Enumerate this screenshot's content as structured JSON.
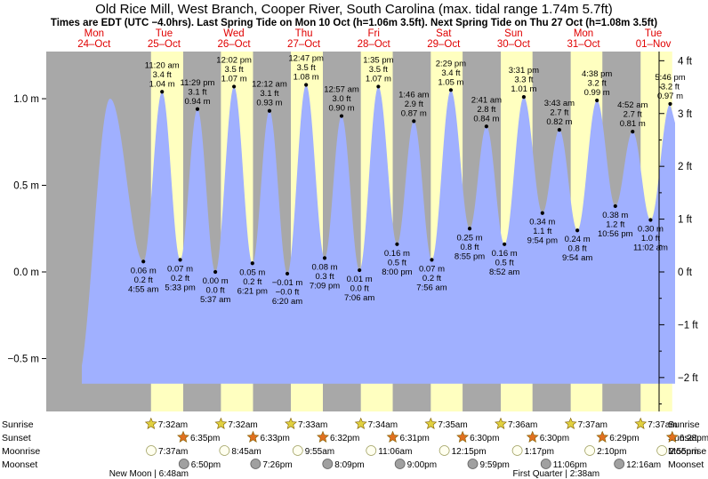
{
  "title": "Old Rice Mill, West Branch, Cooper River, South Carolina (max. tidal range 1.74m 5.7ft)",
  "subtitle": "Times are EDT (UTC −4.0hrs). Last Spring Tide on Mon 10 Oct (h=1.06m 3.5ft). Next Spring Tide on Thu 27 Oct (h=1.08m 3.5ft)",
  "chart_data": {
    "type": "area",
    "left_axis": {
      "unit": "m",
      "range": [
        -0.68,
        1.3
      ],
      "ticks": [
        "1.0 m",
        "0.5 m",
        "0.0 m",
        "−0.5 m"
      ],
      "tick_values": [
        1.0,
        0.5,
        0.0,
        -0.5
      ]
    },
    "right_axis": {
      "unit": "ft",
      "ticks": [
        "4 ft",
        "3 ft",
        "2 ft",
        "1 ft",
        "0 ft",
        "−1 ft",
        "−2 ft"
      ],
      "tick_values": [
        4,
        3,
        2,
        1,
        0,
        -1,
        -2
      ]
    },
    "days": [
      {
        "dow": "Mon",
        "date": "24–Oct"
      },
      {
        "dow": "Tue",
        "date": "25–Oct"
      },
      {
        "dow": "Wed",
        "date": "26–Oct"
      },
      {
        "dow": "Thu",
        "date": "27–Oct"
      },
      {
        "dow": "Fri",
        "date": "28–Oct"
      },
      {
        "dow": "Sat",
        "date": "29–Oct"
      },
      {
        "dow": "Sun",
        "date": "30–Oct"
      },
      {
        "dow": "Mon",
        "date": "31–Oct"
      },
      {
        "dow": "Tue",
        "date": "01–Nov"
      }
    ],
    "tide_events": [
      {
        "day": 0,
        "hour": 17.5,
        "m": 1.0,
        "labeled": false
      },
      {
        "day": 1,
        "hour": 4.92,
        "m": 0.06,
        "ft": "0.2 ft",
        "time": "4:55 am",
        "m_label": "0.06 m",
        "labeled": true
      },
      {
        "day": 1,
        "hour": 11.33,
        "m": 1.04,
        "ft": "3.4 ft",
        "time": "11:20 am",
        "m_label": "1.04 m",
        "labeled": true
      },
      {
        "day": 1,
        "hour": 17.55,
        "m": 0.07,
        "ft": "0.2 ft",
        "time": "5:33 pm",
        "m_label": "0.07 m",
        "labeled": true
      },
      {
        "day": 1,
        "hour": 23.48,
        "m": 0.94,
        "ft": "3.1 ft",
        "time": "11:29 pm",
        "m_label": "0.94 m",
        "labeled": true
      },
      {
        "day": 2,
        "hour": 5.62,
        "m": 0.0,
        "ft": "0.0 ft",
        "time": "5:37 am",
        "m_label": "0.00 m",
        "labeled": true
      },
      {
        "day": 2,
        "hour": 12.03,
        "m": 1.07,
        "ft": "3.5 ft",
        "time": "12:02 pm",
        "m_label": "1.07 m",
        "labeled": true
      },
      {
        "day": 2,
        "hour": 18.35,
        "m": 0.05,
        "ft": "0.2 ft",
        "time": "6:21 pm",
        "m_label": "0.05 m",
        "labeled": true
      },
      {
        "day": 3,
        "hour": 0.2,
        "m": 0.93,
        "ft": "3.1 ft",
        "time": "12:12 am",
        "m_label": "0.93 m",
        "labeled": true
      },
      {
        "day": 3,
        "hour": 6.33,
        "m": -0.01,
        "ft": "−0.0 ft",
        "time": "6:20 am",
        "m_label": "−0.01 m",
        "labeled": true
      },
      {
        "day": 3,
        "hour": 12.78,
        "m": 1.08,
        "ft": "3.5 ft",
        "time": "12:47 pm",
        "m_label": "1.08 m",
        "labeled": true
      },
      {
        "day": 3,
        "hour": 19.15,
        "m": 0.08,
        "ft": "0.3 ft",
        "time": "7:09 pm",
        "m_label": "0.08 m",
        "labeled": true
      },
      {
        "day": 4,
        "hour": 0.95,
        "m": 0.9,
        "ft": "3.0 ft",
        "time": "12:57 am",
        "m_label": "0.90 m",
        "labeled": true
      },
      {
        "day": 4,
        "hour": 7.1,
        "m": 0.01,
        "ft": "0.0 ft",
        "time": "7:06 am",
        "m_label": "0.01 m",
        "labeled": true
      },
      {
        "day": 4,
        "hour": 13.58,
        "m": 1.07,
        "ft": "3.5 ft",
        "time": "1:35 pm",
        "m_label": "1.07 m",
        "labeled": true
      },
      {
        "day": 4,
        "hour": 20.0,
        "m": 0.16,
        "ft": "0.5 ft",
        "time": "8:00 pm",
        "m_label": "0.16 m",
        "labeled": true
      },
      {
        "day": 5,
        "hour": 1.77,
        "m": 0.87,
        "ft": "2.9 ft",
        "time": "1:46 am",
        "m_label": "0.87 m",
        "labeled": true
      },
      {
        "day": 5,
        "hour": 7.93,
        "m": 0.07,
        "ft": "0.2 ft",
        "time": "7:56 am",
        "m_label": "0.07 m",
        "labeled": true
      },
      {
        "day": 5,
        "hour": 14.48,
        "m": 1.05,
        "ft": "3.4 ft",
        "time": "2:29 pm",
        "m_label": "1.05 m",
        "labeled": true
      },
      {
        "day": 5,
        "hour": 20.92,
        "m": 0.25,
        "ft": "0.8 ft",
        "time": "8:55 pm",
        "m_label": "0.25 m",
        "labeled": true
      },
      {
        "day": 6,
        "hour": 2.68,
        "m": 0.84,
        "ft": "2.8 ft",
        "time": "2:41 am",
        "m_label": "0.84 m",
        "labeled": true
      },
      {
        "day": 6,
        "hour": 8.87,
        "m": 0.16,
        "ft": "0.5 ft",
        "time": "8:52 am",
        "m_label": "0.16 m",
        "labeled": true
      },
      {
        "day": 6,
        "hour": 15.52,
        "m": 1.01,
        "ft": "3.3 ft",
        "time": "3:31 pm",
        "m_label": "1.01 m",
        "labeled": true
      },
      {
        "day": 6,
        "hour": 21.9,
        "m": 0.34,
        "ft": "1.1 ft",
        "time": "9:54 pm",
        "m_label": "0.34 m",
        "labeled": true
      },
      {
        "day": 7,
        "hour": 3.72,
        "m": 0.82,
        "ft": "2.7 ft",
        "time": "3:43 am",
        "m_label": "0.82 m",
        "labeled": true
      },
      {
        "day": 7,
        "hour": 9.9,
        "m": 0.24,
        "ft": "0.8 ft",
        "time": "9:54 am",
        "m_label": "0.24 m",
        "labeled": true
      },
      {
        "day": 7,
        "hour": 16.63,
        "m": 0.99,
        "ft": "3.2 ft",
        "time": "4:38 pm",
        "m_label": "0.99 m",
        "labeled": true
      },
      {
        "day": 7,
        "hour": 22.93,
        "m": 0.38,
        "ft": "1.2 ft",
        "time": "10:56 pm",
        "m_label": "0.38 m",
        "labeled": true
      },
      {
        "day": 8,
        "hour": 4.87,
        "m": 0.81,
        "ft": "2.7 ft",
        "time": "4:52 am",
        "m_label": "0.81 m",
        "labeled": true
      },
      {
        "day": 8,
        "hour": 11.03,
        "m": 0.3,
        "ft": "1.0 ft",
        "time": "11:02 am",
        "m_label": "0.30 m",
        "labeled": true
      },
      {
        "day": 8,
        "hour": 17.77,
        "m": 0.97,
        "ft": "3.2 ft",
        "time": "5:46 pm",
        "m_label": "0.97 m",
        "labeled": true
      }
    ],
    "sunrise": [
      "7:32am",
      "7:32am",
      "7:33am",
      "7:34am",
      "7:35am",
      "7:36am",
      "7:37am",
      "7:37am"
    ],
    "sunset": [
      "6:35pm",
      "6:33pm",
      "6:32pm",
      "6:31pm",
      "6:30pm",
      "6:30pm",
      "6:29pm",
      "6:28pm"
    ],
    "moonrise": [
      "7:37am",
      "8:45am",
      "9:55am",
      "11:06am",
      "12:15pm",
      "1:17pm",
      "2:10pm",
      "2:55pm"
    ],
    "moonset": [
      "6:50pm",
      "7:26pm",
      "8:09pm",
      "9:00pm",
      "9:59pm",
      "11:06pm",
      "12:16am"
    ],
    "row_labels": {
      "sunrise": "Sunrise",
      "sunset": "Sunset",
      "moonrise": "Moonrise",
      "moonset": "Moonset"
    },
    "moon_phases": [
      {
        "text": "New Moon | 6:48am",
        "day": 1,
        "hour": 6.8
      },
      {
        "text": "First Quarter | 2:38am",
        "day": 7,
        "hour": 2.63
      }
    ],
    "colors": {
      "tide": "#a0b0ff",
      "night": "#a8a8a8",
      "day": "#ffffc0",
      "daylabel": "#e00000",
      "sun_star": "#e0d040",
      "sunset_star": "#e07020",
      "moon": "#fffff0"
    }
  }
}
